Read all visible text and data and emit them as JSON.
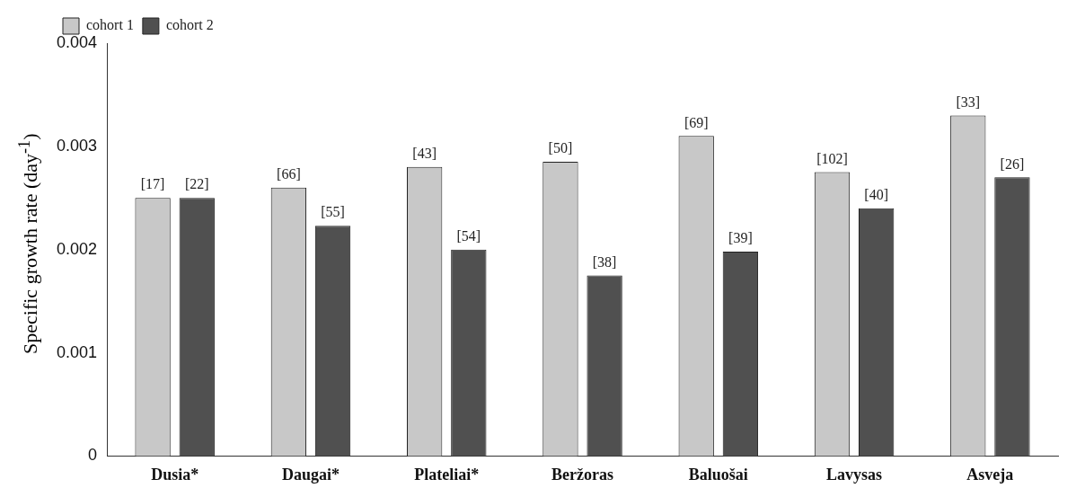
{
  "chart_data": {
    "type": "bar",
    "ylabel": "Specific growth rate (day$^{-1}$)",
    "categories": [
      "Dusia*",
      "Daugai*",
      "Plateliai*",
      "Beržoras",
      "Baluošai",
      "Lavysas",
      "Asveja"
    ],
    "series": [
      {
        "name": "cohort 1",
        "color": "#c8c8c8",
        "values": [
          0.0025,
          0.0026,
          0.0028,
          0.00285,
          0.0031,
          0.00275,
          0.0033
        ]
      },
      {
        "name": "cohort 2",
        "color": "#505050",
        "values": [
          0.0025,
          0.00223,
          0.002,
          0.00175,
          0.00198,
          0.0024,
          0.0027
        ]
      }
    ],
    "annotations": [
      "[17]",
      "[22]",
      "[66]",
      "[55]",
      "[43]",
      "[54]",
      "[50]",
      "[38]",
      "[69]",
      "[39]",
      "[102]",
      "[40]",
      "[33]",
      "[26]"
    ],
    "ylim": [
      0,
      0.004
    ],
    "yticks": [
      0,
      0.001,
      0.002,
      0.003,
      0.004
    ],
    "grid": false,
    "legend": "top left"
  }
}
